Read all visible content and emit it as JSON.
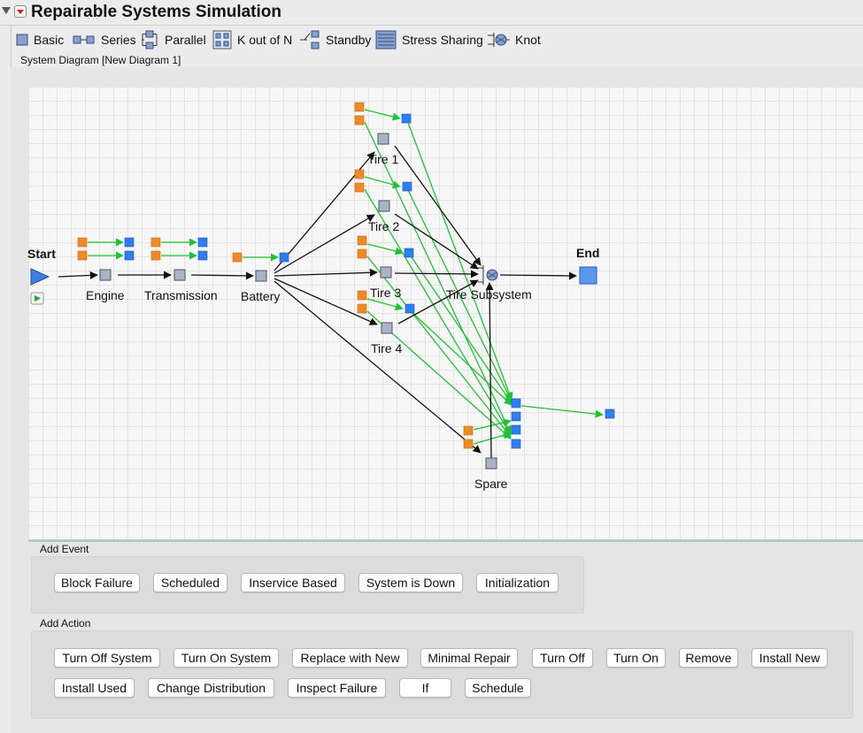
{
  "report": {
    "title": "Repairable Systems Simulation"
  },
  "palette": {
    "basic": "Basic",
    "series": "Series",
    "parallel": "Parallel",
    "kofn": "K out of N",
    "standby": "Standby",
    "stress": "Stress Sharing",
    "knot": "Knot"
  },
  "diagram": {
    "label": "System Diagram [New Diagram 1]",
    "nodes": {
      "start": "Start",
      "engine": "Engine",
      "transmission": "Transmission",
      "battery": "Battery",
      "tire1": "Tire 1",
      "tire2": "Tire 2",
      "tire3": "Tire 3",
      "tire4": "Tire 4",
      "tire_subsystem": "Tire Subsystem",
      "end": "End",
      "spare": "Spare"
    }
  },
  "add_event": {
    "title": "Add Event",
    "buttons": [
      "Block Failure",
      "Scheduled",
      "Inservice Based",
      "System is Down",
      "Initialization"
    ]
  },
  "add_action": {
    "title": "Add Action",
    "row1": [
      "Turn Off System",
      "Turn On System",
      "Replace with New",
      "Minimal Repair",
      "Turn Off",
      "Turn On",
      "Remove",
      "Install New"
    ],
    "row2": [
      "Install Used",
      "Change Distribution",
      "Inspect Failure",
      "If",
      "Schedule"
    ]
  },
  "colors": {
    "event": "#f08a24",
    "action": "#2f7df2",
    "link": "#1fc232",
    "block": "#9aa5b8",
    "start": "#3c7fe0",
    "end": "#5b96f0"
  }
}
